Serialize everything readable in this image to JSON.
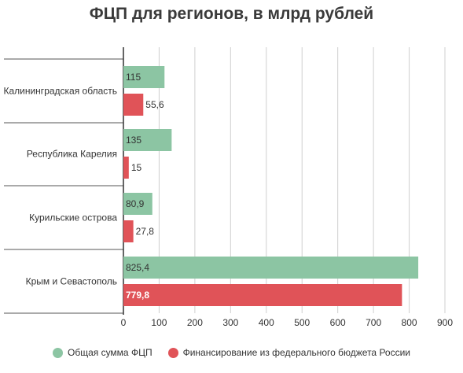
{
  "chart_data": {
    "type": "bar",
    "orientation": "horizontal",
    "title": "ФЦП для регионов, в млрд рублей",
    "categories": [
      "Калининградская область",
      "Республика Карелия",
      "Курильские острова",
      "Крым и Севастополь"
    ],
    "series": [
      {
        "name": "Общая сумма ФЦП",
        "color": "#8cc5a3",
        "values": [
          115,
          135,
          80.9,
          825.4
        ],
        "labels": [
          "115",
          "135",
          "80,9",
          "825,4"
        ]
      },
      {
        "name": "Финансирование из федерального бюджета России",
        "color": "#e05358",
        "values": [
          55.6,
          15,
          27.8,
          779.8
        ],
        "labels": [
          "55,6",
          "15",
          "27,8",
          "779,8"
        ]
      }
    ],
    "xlim": [
      0,
      900
    ],
    "ticks": [
      0,
      100,
      200,
      300,
      400,
      500,
      600,
      700,
      800,
      900
    ],
    "grid": true,
    "legend_position": "bottom"
  }
}
